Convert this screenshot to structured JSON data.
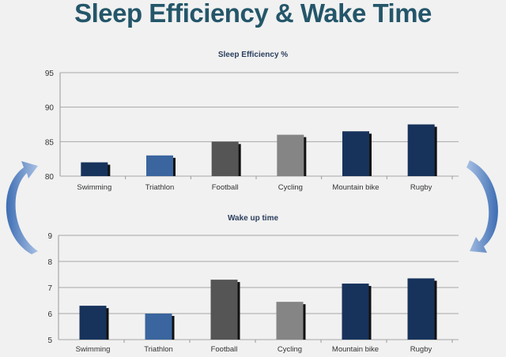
{
  "slide": {
    "title": "Sleep Efficiency & Wake Time"
  },
  "chart_data": [
    {
      "type": "bar",
      "title": "Sleep Efficiency %",
      "xlabel": "",
      "ylabel": "",
      "categories": [
        "Swimming",
        "Triathlon",
        "Football",
        "Cycling",
        "Mountain bike",
        "Rugby"
      ],
      "values": [
        82,
        83,
        85,
        86,
        86.5,
        87.5
      ],
      "ylim": [
        80,
        95
      ],
      "yticks": [
        80,
        85,
        90,
        95
      ],
      "grid": true,
      "colors": [
        "#17335c",
        "#3a659e",
        "#555555",
        "#858585",
        "#17335c",
        "#17335c"
      ]
    },
    {
      "type": "bar",
      "title": "Wake up time",
      "xlabel": "",
      "ylabel": "",
      "categories": [
        "Swimming",
        "Triathlon",
        "Football",
        "Cycling",
        "Mountain bike",
        "Rugby"
      ],
      "values": [
        6.3,
        6.0,
        7.3,
        6.45,
        7.15,
        7.35
      ],
      "ylim": [
        5,
        9
      ],
      "yticks": [
        5,
        6,
        7,
        8,
        9
      ],
      "grid": true,
      "colors": [
        "#17335c",
        "#3a659e",
        "#555555",
        "#858585",
        "#17335c",
        "#17335c"
      ]
    }
  ],
  "decor": {
    "arrow_color": "#4f7fc0"
  }
}
